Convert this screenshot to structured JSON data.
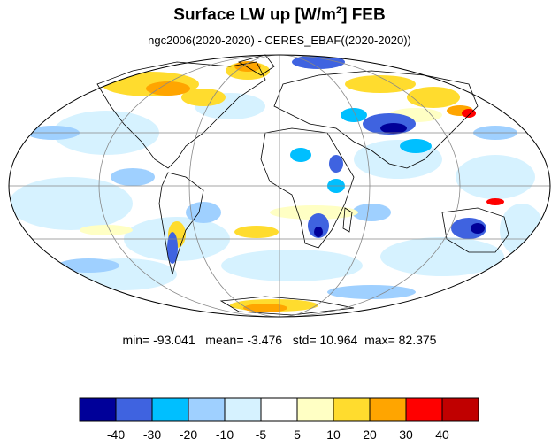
{
  "title": {
    "prefix": "Surface LW up [W/m",
    "superscript": "2",
    "suffix": "]  FEB"
  },
  "subtitle": "ngc2006(2020-2020) - CERES_EBAF((2020-2020))",
  "stats": {
    "min_label": "min=",
    "min": "-93.041",
    "mean_label": "mean=",
    "mean": "-3.476",
    "std_label": "std=",
    "std": "10.964",
    "max_label": "max=",
    "max": "82.375"
  },
  "colorbar": {
    "colors": [
      "#000099",
      "#3f63e0",
      "#00bfff",
      "#9fd0ff",
      "#d6f2ff",
      "#ffffff",
      "#ffffc4",
      "#ffdc2e",
      "#ffa500",
      "#ff0000",
      "#c00000"
    ],
    "tick_labels": [
      "-40",
      "-30",
      "-20",
      "-10",
      "-5",
      "5",
      "10",
      "20",
      "30",
      "40"
    ]
  },
  "map": {
    "projection": "Mollweide",
    "grid_lines": true,
    "background": "#ffffff",
    "gridline_color": "#888888",
    "coastline_color": "#000000"
  }
}
